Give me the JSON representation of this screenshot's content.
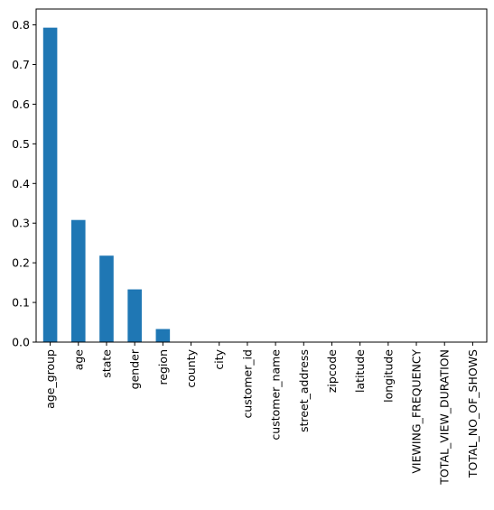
{
  "chart_data": {
    "type": "bar",
    "title": "",
    "xlabel": "",
    "ylabel": "",
    "ylim": [
      0,
      0.84
    ],
    "yticks": [
      0.0,
      0.1,
      0.2,
      0.3,
      0.4,
      0.5,
      0.6,
      0.7,
      0.8
    ],
    "ytick_labels": [
      "0.0",
      "0.1",
      "0.2",
      "0.3",
      "0.4",
      "0.5",
      "0.6",
      "0.7",
      "0.8"
    ],
    "grid": false,
    "bar_color": "#1f77b4",
    "categories": [
      "age_group",
      "age",
      "state",
      "gender",
      "region",
      "county",
      "city",
      "customer_id",
      "customer_name",
      "street_address",
      "zipcode",
      "latitude",
      "longitude",
      "VIEWING_FREQUENCY",
      "TOTAL_VIEW_DURATION",
      "TOTAL_NO_OF_SHOWS"
    ],
    "values": [
      0.793,
      0.308,
      0.218,
      0.133,
      0.033,
      0,
      0,
      0,
      0,
      0,
      0,
      0,
      0,
      0,
      0,
      0
    ]
  }
}
